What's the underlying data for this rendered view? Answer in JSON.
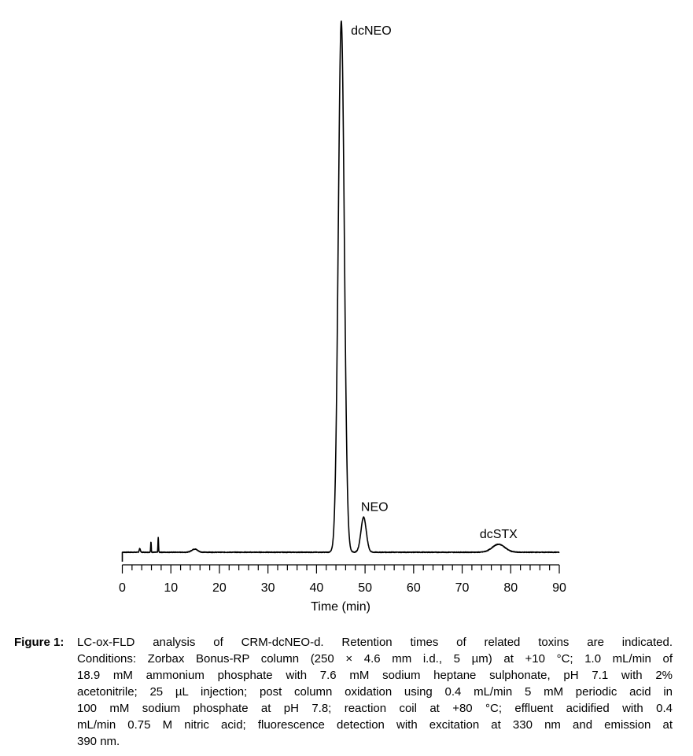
{
  "chart_data": {
    "type": "line",
    "title": "",
    "xlabel": "Time (min)",
    "ylabel": "",
    "xlim": [
      0,
      90
    ],
    "xticks": [
      0,
      10,
      20,
      30,
      40,
      50,
      60,
      70,
      80,
      90
    ],
    "minor_tick_step": 2,
    "y_axis_shown": false,
    "grid": false,
    "line_color": "#000000",
    "peaks": [
      {
        "rt": 3.6,
        "height": 0.7,
        "sigma": 0.12,
        "label": ""
      },
      {
        "rt": 5.9,
        "height": 2.0,
        "sigma": 0.06,
        "label": ""
      },
      {
        "rt": 7.4,
        "height": 2.8,
        "sigma": 0.06,
        "label": ""
      },
      {
        "rt": 14.9,
        "height": 0.6,
        "sigma": 0.6,
        "label": ""
      },
      {
        "rt": 45.1,
        "height": 100,
        "sigma": 0.62,
        "label": "dcNEO"
      },
      {
        "rt": 49.7,
        "height": 6.6,
        "sigma": 0.55,
        "label": "NEO"
      },
      {
        "rt": 77.5,
        "height": 1.5,
        "sigma": 1.3,
        "label": "dcSTX"
      }
    ]
  },
  "caption": {
    "label": "Figure 1:",
    "lines": [
      "LC-ox-FLD analysis of CRM-dcNEO-d. Retention times of related toxins are indicated.",
      "Conditions: Zorbax Bonus-RP column (250 × 4.6 mm i.d., 5 µm) at +10 °C; 1.0 mL/min of",
      "18.9 mM ammonium phosphate with 7.6 mM sodium heptane sulphonate, pH 7.1 with 2%",
      "acetonitrile; 25 µL injection; post column oxidation using 0.4 mL/min 5 mM periodic acid in",
      "100 mM sodium phosphate at pH 7.8; reaction coil at +80 °C; effluent acidified with 0.4",
      "mL/min 0.75 M nitric acid; fluorescence detection with excitation at 330 nm and emission at",
      "390 nm."
    ]
  }
}
